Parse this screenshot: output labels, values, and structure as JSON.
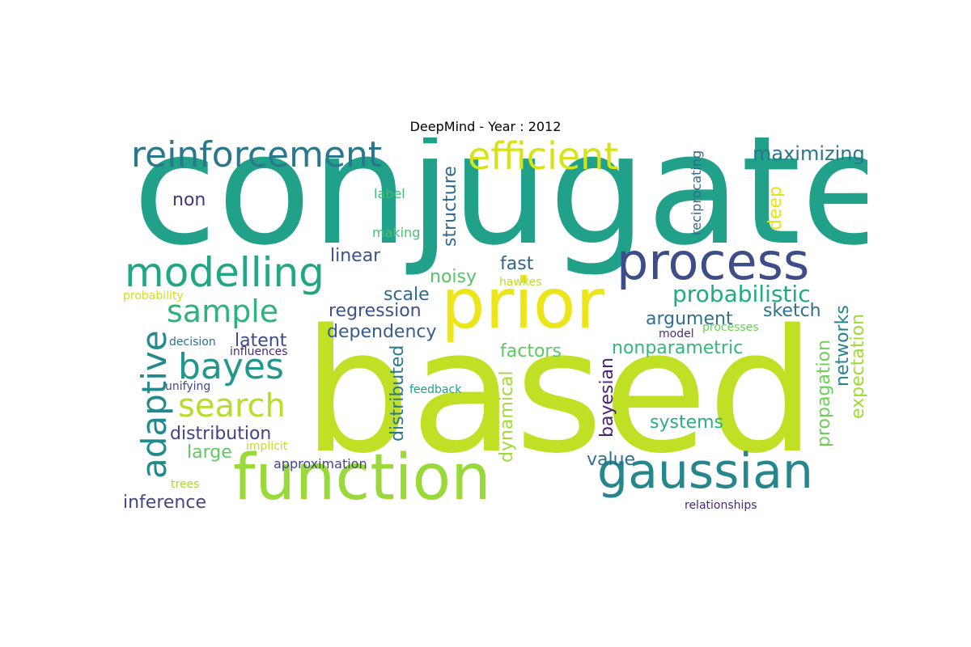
{
  "title": "DeepMind - Year : 2012",
  "words": [
    {
      "text": "conjugate",
      "color": "#21a189",
      "orientation": "horizontal"
    },
    {
      "text": "based",
      "color": "#c0e026",
      "orientation": "horizontal"
    },
    {
      "text": "function",
      "color": "#9ad93a",
      "orientation": "horizontal"
    },
    {
      "text": "prior",
      "color": "#ebe51a",
      "orientation": "horizontal"
    },
    {
      "text": "gaussian",
      "color": "#25878d",
      "orientation": "horizontal"
    },
    {
      "text": "process",
      "color": "#3d4d8a",
      "orientation": "horizontal"
    },
    {
      "text": "reinforcement",
      "color": "#2a788e",
      "orientation": "horizontal"
    },
    {
      "text": "efficient",
      "color": "#d8e219",
      "orientation": "horizontal"
    },
    {
      "text": "modelling",
      "color": "#22a785",
      "orientation": "horizontal"
    },
    {
      "text": "adaptive",
      "color": "#23898e",
      "orientation": "vertical"
    },
    {
      "text": "sample",
      "color": "#2eb37c",
      "orientation": "horizontal"
    },
    {
      "text": "bayes",
      "color": "#22978d",
      "orientation": "horizontal"
    },
    {
      "text": "search",
      "color": "#b5de2b",
      "orientation": "horizontal"
    },
    {
      "text": "maximizing",
      "color": "#2a768e",
      "orientation": "horizontal"
    },
    {
      "text": "probabilistic",
      "color": "#22a884",
      "orientation": "horizontal"
    },
    {
      "text": "non",
      "color": "#46337f",
      "orientation": "horizontal"
    },
    {
      "text": "label",
      "color": "#3bbb75",
      "orientation": "horizontal"
    },
    {
      "text": "making",
      "color": "#4ac16d",
      "orientation": "horizontal"
    },
    {
      "text": "linear",
      "color": "#3b528b",
      "orientation": "horizontal"
    },
    {
      "text": "structure",
      "color": "#31688e",
      "orientation": "vertical"
    },
    {
      "text": "fast",
      "color": "#33638d",
      "orientation": "horizontal"
    },
    {
      "text": "noisy",
      "color": "#54c568",
      "orientation": "horizontal"
    },
    {
      "text": "hawkes",
      "color": "#bddf26",
      "orientation": "horizontal"
    },
    {
      "text": "scale",
      "color": "#31688e",
      "orientation": "horizontal"
    },
    {
      "text": "regression",
      "color": "#3b528b",
      "orientation": "horizontal"
    },
    {
      "text": "dependency",
      "color": "#365c8d",
      "orientation": "horizontal"
    },
    {
      "text": "argument",
      "color": "#2d718e",
      "orientation": "horizontal"
    },
    {
      "text": "sketch",
      "color": "#2c728e",
      "orientation": "horizontal"
    },
    {
      "text": "latent",
      "color": "#3e4a89",
      "orientation": "horizontal"
    },
    {
      "text": "probability",
      "color": "#d0e11c",
      "orientation": "horizontal"
    },
    {
      "text": "decision",
      "color": "#2c728e",
      "orientation": "horizontal"
    },
    {
      "text": "influences",
      "color": "#482878",
      "orientation": "horizontal"
    },
    {
      "text": "unifying",
      "color": "#3e4a89",
      "orientation": "horizontal"
    },
    {
      "text": "distribution",
      "color": "#414487",
      "orientation": "horizontal"
    },
    {
      "text": "large",
      "color": "#5ec962",
      "orientation": "horizontal"
    },
    {
      "text": "implicit",
      "color": "#bddf26",
      "orientation": "horizontal"
    },
    {
      "text": "approximation",
      "color": "#404688",
      "orientation": "horizontal"
    },
    {
      "text": "inference",
      "color": "#404688",
      "orientation": "horizontal"
    },
    {
      "text": "trees",
      "color": "#a5db36",
      "orientation": "horizontal"
    },
    {
      "text": "feedback",
      "color": "#1fa187",
      "orientation": "horizontal"
    },
    {
      "text": "distributed",
      "color": "#2a788e",
      "orientation": "vertical"
    },
    {
      "text": "dynamical",
      "color": "#a0da39",
      "orientation": "vertical"
    },
    {
      "text": "factors",
      "color": "#5ec962",
      "orientation": "horizontal"
    },
    {
      "text": "nonparametric",
      "color": "#35b779",
      "orientation": "horizontal"
    },
    {
      "text": "bayesian",
      "color": "#482475",
      "orientation": "vertical"
    },
    {
      "text": "systems",
      "color": "#2ab07f",
      "orientation": "horizontal"
    },
    {
      "text": "value",
      "color": "#2d708e",
      "orientation": "horizontal"
    },
    {
      "text": "model",
      "color": "#472f7d",
      "orientation": "horizontal"
    },
    {
      "text": "processes",
      "color": "#6ccd5a",
      "orientation": "horizontal"
    },
    {
      "text": "relationships",
      "color": "#482878",
      "orientation": "horizontal"
    },
    {
      "text": "reciprocating",
      "color": "#31688e",
      "orientation": "vertical"
    },
    {
      "text": "deep",
      "color": "#e2e418",
      "orientation": "vertical"
    },
    {
      "text": "networks",
      "color": "#25838e",
      "orientation": "vertical"
    },
    {
      "text": "propagation",
      "color": "#6ece58",
      "orientation": "vertical"
    },
    {
      "text": "expectation",
      "color": "#a0da39",
      "orientation": "vertical"
    }
  ]
}
